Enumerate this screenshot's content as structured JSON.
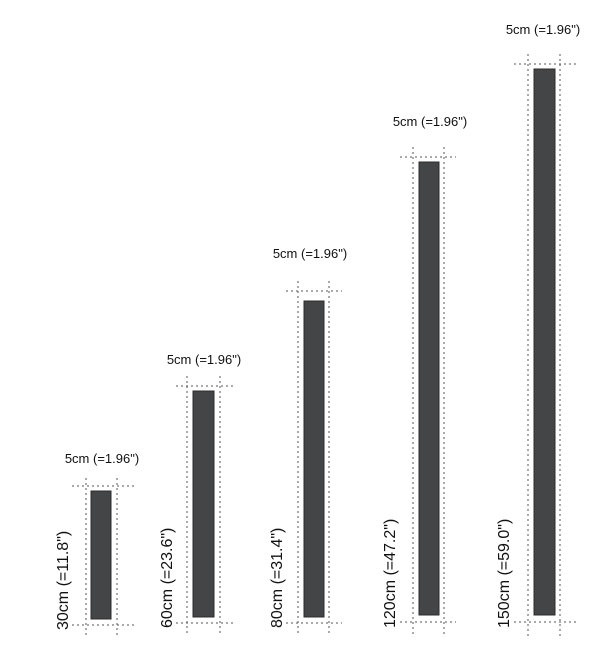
{
  "products": [
    {
      "width_label": "5cm (=1.96\")",
      "height_label": "30cm (=11.8\")",
      "height_cm": 30
    },
    {
      "width_label": "5cm (=1.96\")",
      "height_label": "60cm (=23.6\")",
      "height_cm": 60
    },
    {
      "width_label": "5cm (=1.96\")",
      "height_label": "80cm (=31.4\")",
      "height_cm": 80
    },
    {
      "width_label": "5cm (=1.96\")",
      "height_label": "120cm (=47.2\")",
      "height_cm": 120
    },
    {
      "width_label": "5cm (=1.96\")",
      "height_label": "150cm (=59.0\")",
      "height_cm": 150
    }
  ],
  "colors": {
    "bar": "#444546",
    "guide": "#555555",
    "text": "#111111"
  }
}
